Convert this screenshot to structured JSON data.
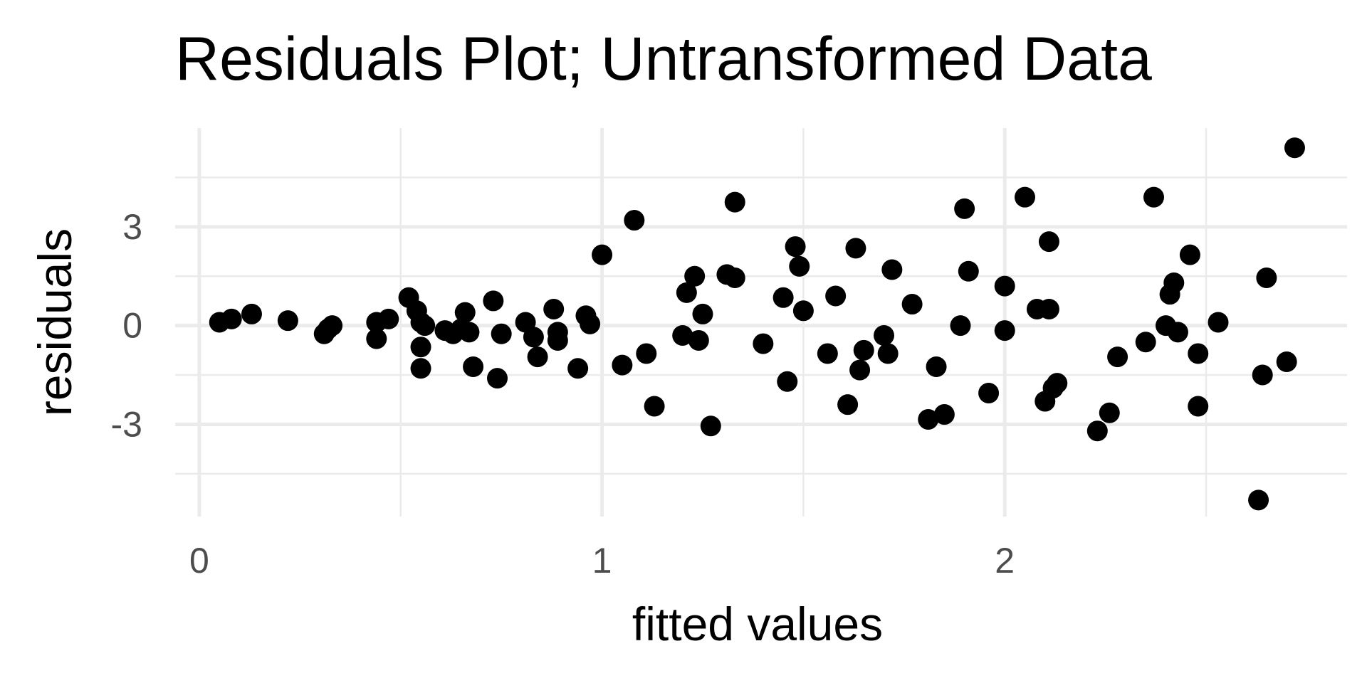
{
  "chart_data": {
    "type": "scatter",
    "title": "Residuals Plot; Untransformed Data",
    "xlabel": "fitted values",
    "ylabel": "residuals",
    "x_ticks": [
      0,
      1,
      2
    ],
    "x_tick_labels": [
      "0",
      "1",
      "2"
    ],
    "x_minor_ticks": [
      0.5,
      1.5,
      2.5
    ],
    "y_ticks": [
      -3,
      0,
      3
    ],
    "y_tick_labels": [
      "-3",
      "0",
      "3"
    ],
    "y_minor_ticks": [
      -4.5,
      -1.5,
      1.5,
      4.5
    ],
    "xlim": [
      -0.06,
      2.85
    ],
    "ylim": [
      -5.8,
      6.0
    ],
    "grid": true,
    "point_color": "#000000",
    "grid_color": "#ebebeb",
    "points": [
      {
        "x": 0.05,
        "y": 0.1
      },
      {
        "x": 0.08,
        "y": 0.2
      },
      {
        "x": 0.13,
        "y": 0.35
      },
      {
        "x": 0.22,
        "y": 0.15
      },
      {
        "x": 0.31,
        "y": -0.25
      },
      {
        "x": 0.32,
        "y": -0.1
      },
      {
        "x": 0.33,
        "y": 0.0
      },
      {
        "x": 0.44,
        "y": 0.1
      },
      {
        "x": 0.44,
        "y": -0.4
      },
      {
        "x": 0.47,
        "y": 0.2
      },
      {
        "x": 0.52,
        "y": 0.85
      },
      {
        "x": 0.54,
        "y": 0.45
      },
      {
        "x": 0.55,
        "y": 0.1
      },
      {
        "x": 0.55,
        "y": -0.65
      },
      {
        "x": 0.55,
        "y": -1.3
      },
      {
        "x": 0.56,
        "y": 0.0
      },
      {
        "x": 0.61,
        "y": -0.15
      },
      {
        "x": 0.63,
        "y": -0.25
      },
      {
        "x": 0.65,
        "y": -0.1
      },
      {
        "x": 0.66,
        "y": 0.4
      },
      {
        "x": 0.67,
        "y": -0.2
      },
      {
        "x": 0.68,
        "y": -1.25
      },
      {
        "x": 0.73,
        "y": 0.75
      },
      {
        "x": 0.74,
        "y": -1.6
      },
      {
        "x": 0.75,
        "y": -0.25
      },
      {
        "x": 0.81,
        "y": 0.1
      },
      {
        "x": 0.83,
        "y": -0.35
      },
      {
        "x": 0.84,
        "y": -0.95
      },
      {
        "x": 0.88,
        "y": 0.5
      },
      {
        "x": 0.89,
        "y": -0.2
      },
      {
        "x": 0.89,
        "y": -0.45
      },
      {
        "x": 0.94,
        "y": -1.3
      },
      {
        "x": 0.96,
        "y": 0.3
      },
      {
        "x": 0.97,
        "y": 0.05
      },
      {
        "x": 1.0,
        "y": 2.15
      },
      {
        "x": 1.05,
        "y": -1.2
      },
      {
        "x": 1.08,
        "y": 3.2
      },
      {
        "x": 1.11,
        "y": -0.85
      },
      {
        "x": 1.13,
        "y": -2.45
      },
      {
        "x": 1.2,
        "y": -0.3
      },
      {
        "x": 1.21,
        "y": 1.0
      },
      {
        "x": 1.23,
        "y": 1.5
      },
      {
        "x": 1.24,
        "y": -0.45
      },
      {
        "x": 1.25,
        "y": 0.35
      },
      {
        "x": 1.27,
        "y": -3.05
      },
      {
        "x": 1.31,
        "y": 1.55
      },
      {
        "x": 1.33,
        "y": 1.45
      },
      {
        "x": 1.33,
        "y": 3.75
      },
      {
        "x": 1.4,
        "y": -0.55
      },
      {
        "x": 1.45,
        "y": 0.85
      },
      {
        "x": 1.46,
        "y": -1.7
      },
      {
        "x": 1.48,
        "y": 2.4
      },
      {
        "x": 1.49,
        "y": 1.8
      },
      {
        "x": 1.5,
        "y": 0.45
      },
      {
        "x": 1.56,
        "y": -0.85
      },
      {
        "x": 1.58,
        "y": 0.9
      },
      {
        "x": 1.61,
        "y": -2.4
      },
      {
        "x": 1.63,
        "y": 2.35
      },
      {
        "x": 1.64,
        "y": -1.35
      },
      {
        "x": 1.65,
        "y": -0.75
      },
      {
        "x": 1.7,
        "y": -0.3
      },
      {
        "x": 1.71,
        "y": -0.85
      },
      {
        "x": 1.72,
        "y": 1.7
      },
      {
        "x": 1.77,
        "y": 0.65
      },
      {
        "x": 1.81,
        "y": -2.85
      },
      {
        "x": 1.83,
        "y": -1.25
      },
      {
        "x": 1.85,
        "y": -2.7
      },
      {
        "x": 1.89,
        "y": 0.0
      },
      {
        "x": 1.9,
        "y": 3.55
      },
      {
        "x": 1.91,
        "y": 1.65
      },
      {
        "x": 1.96,
        "y": -2.05
      },
      {
        "x": 2.0,
        "y": 1.2
      },
      {
        "x": 2.0,
        "y": -0.15
      },
      {
        "x": 2.05,
        "y": 3.9
      },
      {
        "x": 2.08,
        "y": 0.5
      },
      {
        "x": 2.1,
        "y": -2.3
      },
      {
        "x": 2.11,
        "y": 0.5
      },
      {
        "x": 2.11,
        "y": 2.55
      },
      {
        "x": 2.12,
        "y": -1.9
      },
      {
        "x": 2.13,
        "y": -1.75
      },
      {
        "x": 2.23,
        "y": -3.2
      },
      {
        "x": 2.26,
        "y": -2.65
      },
      {
        "x": 2.28,
        "y": -0.95
      },
      {
        "x": 2.35,
        "y": -0.5
      },
      {
        "x": 2.37,
        "y": 3.9
      },
      {
        "x": 2.4,
        "y": 0.0
      },
      {
        "x": 2.41,
        "y": 0.95
      },
      {
        "x": 2.42,
        "y": 1.3
      },
      {
        "x": 2.43,
        "y": -0.2
      },
      {
        "x": 2.46,
        "y": 2.15
      },
      {
        "x": 2.48,
        "y": -0.85
      },
      {
        "x": 2.48,
        "y": -2.45
      },
      {
        "x": 2.53,
        "y": 0.1
      },
      {
        "x": 2.63,
        "y": -5.3
      },
      {
        "x": 2.64,
        "y": -1.5
      },
      {
        "x": 2.65,
        "y": 1.45
      },
      {
        "x": 2.7,
        "y": -1.1
      },
      {
        "x": 2.72,
        "y": 5.4
      }
    ]
  }
}
